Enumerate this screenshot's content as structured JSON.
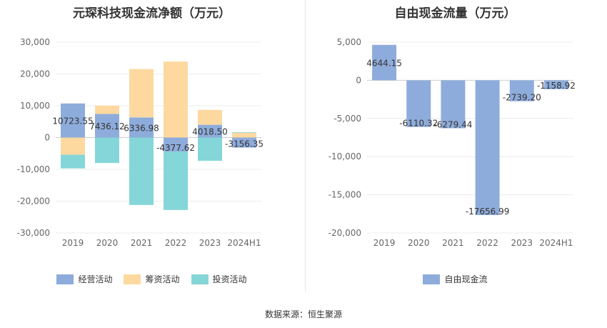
{
  "chart_data": [
    {
      "type": "bar",
      "stacked": true,
      "title": "元琛科技现金流净额（万元）",
      "categories": [
        "2019",
        "2020",
        "2021",
        "2022",
        "2023",
        "2024H1"
      ],
      "ylim": [
        -30000,
        30000
      ],
      "yticks": [
        30000,
        20000,
        10000,
        0,
        -10000,
        -20000,
        -30000
      ],
      "ytick_labels": [
        "30,000",
        "20,000",
        "10,000",
        "0",
        "-10,000",
        "-20,000",
        "-30,000"
      ],
      "grid": true,
      "legend_position": "bottom",
      "series": [
        {
          "name": "经营活动",
          "color": "#8eacdb",
          "values": [
            10723.55,
            7436.12,
            6336.98,
            -4377.62,
            4018.5,
            -3156.35
          ]
        },
        {
          "name": "筹资活动",
          "color": "#fdd9a0",
          "values": [
            -5400,
            2600,
            15200,
            23900,
            4700,
            1500
          ]
        },
        {
          "name": "投资活动",
          "color": "#85d6d8",
          "values": [
            -4300,
            -8000,
            -21200,
            -18400,
            -7300,
            200
          ]
        }
      ],
      "data_labels": [
        "10723.55",
        "7436.12",
        "6336.98",
        "-4377.62",
        "4018.50",
        "-3156.35"
      ]
    },
    {
      "type": "bar",
      "title": "自由现金流量（万元）",
      "categories": [
        "2019",
        "2020",
        "2021",
        "2022",
        "2023",
        "2024H1"
      ],
      "ylim": [
        -20000,
        5000
      ],
      "yticks": [
        5000,
        0,
        -5000,
        -10000,
        -15000,
        -20000
      ],
      "ytick_labels": [
        "5,000",
        "0",
        "-5,000",
        "-10,000",
        "-15,000",
        "-20,000"
      ],
      "grid": true,
      "legend_position": "bottom",
      "series": [
        {
          "name": "自由现金流",
          "color": "#8eacdb",
          "values": [
            4644.15,
            -6110.32,
            -6279.44,
            -17656.99,
            -2739.2,
            -1158.92
          ]
        }
      ],
      "data_labels": [
        "4644.15",
        "-6110.32",
        "-6279.44",
        "-17656.99",
        "-2739.20",
        "-1158.92"
      ]
    }
  ],
  "source_text": "数据来源：恒生聚源"
}
